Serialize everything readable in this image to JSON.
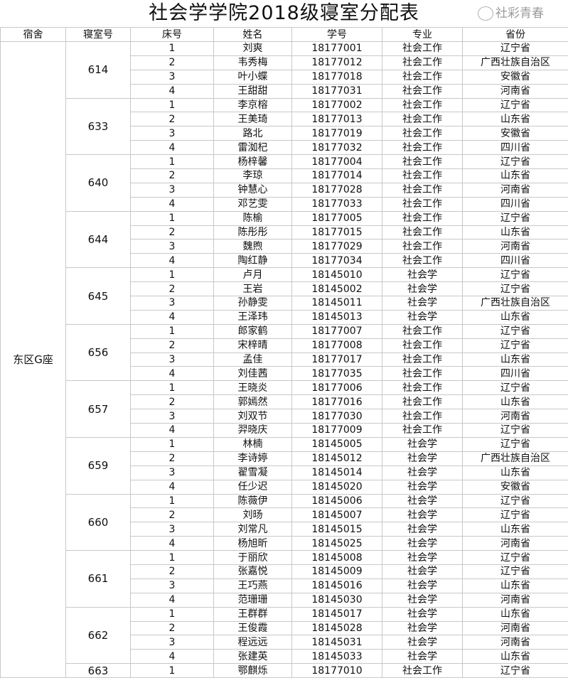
{
  "title": "社会学学院2018级寝室分配表",
  "headers": [
    "宿舍",
    "寝室号",
    "床号",
    "姓名",
    "学号",
    "专业",
    "省份"
  ],
  "dorm": "东区G座",
  "watermark": "社彩青春",
  "rooms": [
    {
      "room": "614",
      "beds": [
        [
          "1",
          "刘爽",
          "18177001",
          "社会工作",
          "辽宁省"
        ],
        [
          "2",
          "韦秀梅",
          "18177012",
          "社会工作",
          "广西壮族自治区"
        ],
        [
          "3",
          "叶小蝶",
          "18177018",
          "社会工作",
          "安徽省"
        ],
        [
          "4",
          "王甜甜",
          "18177031",
          "社会工作",
          "河南省"
        ]
      ]
    },
    {
      "room": "633",
      "beds": [
        [
          "1",
          "李京榕",
          "18177002",
          "社会工作",
          "辽宁省"
        ],
        [
          "2",
          "王美琦",
          "18177013",
          "社会工作",
          "山东省"
        ],
        [
          "3",
          "路北",
          "18177019",
          "社会工作",
          "安徽省"
        ],
        [
          "4",
          "雷洳杞",
          "18177032",
          "社会工作",
          "四川省"
        ]
      ]
    },
    {
      "room": "640",
      "beds": [
        [
          "1",
          "杨梓馨",
          "18177004",
          "社会工作",
          "辽宁省"
        ],
        [
          "2",
          "李琼",
          "18177014",
          "社会工作",
          "山东省"
        ],
        [
          "3",
          "钟慧心",
          "18177028",
          "社会工作",
          "河南省"
        ],
        [
          "4",
          "邓艺雯",
          "18177033",
          "社会工作",
          "四川省"
        ]
      ]
    },
    {
      "room": "644",
      "beds": [
        [
          "1",
          "陈榆",
          "18177005",
          "社会工作",
          "辽宁省"
        ],
        [
          "2",
          "陈彤彤",
          "18177015",
          "社会工作",
          "山东省"
        ],
        [
          "3",
          "魏煦",
          "18177029",
          "社会工作",
          "河南省"
        ],
        [
          "4",
          "陶红静",
          "18177034",
          "社会工作",
          "四川省"
        ]
      ]
    },
    {
      "room": "645",
      "beds": [
        [
          "1",
          "卢月",
          "18145010",
          "社会学",
          "辽宁省"
        ],
        [
          "2",
          "王岩",
          "18145002",
          "社会学",
          "辽宁省"
        ],
        [
          "3",
          "孙静雯",
          "18145011",
          "社会学",
          "广西壮族自治区"
        ],
        [
          "4",
          "王泽玮",
          "18145013",
          "社会学",
          "山东省"
        ]
      ]
    },
    {
      "room": "656",
      "beds": [
        [
          "1",
          "郎家鹤",
          "18177007",
          "社会工作",
          "辽宁省"
        ],
        [
          "2",
          "宋梓晴",
          "18177008",
          "社会工作",
          "辽宁省"
        ],
        [
          "3",
          "孟佳",
          "18177017",
          "社会工作",
          "山东省"
        ],
        [
          "4",
          "刘佳茜",
          "18177035",
          "社会工作",
          "四川省"
        ]
      ]
    },
    {
      "room": "657",
      "beds": [
        [
          "1",
          "王晓炎",
          "18177006",
          "社会工作",
          "辽宁省"
        ],
        [
          "2",
          "郭嫣然",
          "18177016",
          "社会工作",
          "山东省"
        ],
        [
          "3",
          "刘双节",
          "18177030",
          "社会工作",
          "河南省"
        ],
        [
          "4",
          "羿晓庆",
          "18177009",
          "社会工作",
          "辽宁省"
        ]
      ]
    },
    {
      "room": "659",
      "beds": [
        [
          "1",
          "林楠",
          "18145005",
          "社会学",
          "辽宁省"
        ],
        [
          "2",
          "李诗婷",
          "18145012",
          "社会学",
          "广西壮族自治区"
        ],
        [
          "3",
          "翟雪凝",
          "18145014",
          "社会学",
          "山东省"
        ],
        [
          "4",
          "任少迟",
          "18145020",
          "社会学",
          "安徽省"
        ]
      ]
    },
    {
      "room": "660",
      "beds": [
        [
          "1",
          "陈薇伊",
          "18145006",
          "社会学",
          "辽宁省"
        ],
        [
          "2",
          "刘旸",
          "18145007",
          "社会学",
          "辽宁省"
        ],
        [
          "3",
          "刘常凡",
          "18145015",
          "社会学",
          "山东省"
        ],
        [
          "4",
          "杨旭昕",
          "18145025",
          "社会学",
          "河南省"
        ]
      ]
    },
    {
      "room": "661",
      "beds": [
        [
          "1",
          "于丽欣",
          "18145008",
          "社会学",
          "辽宁省"
        ],
        [
          "2",
          "张嘉悦",
          "18145009",
          "社会学",
          "辽宁省"
        ],
        [
          "3",
          "王巧燕",
          "18145016",
          "社会学",
          "山东省"
        ],
        [
          "4",
          "范珊珊",
          "18145030",
          "社会学",
          "河南省"
        ]
      ]
    },
    {
      "room": "662",
      "beds": [
        [
          "1",
          "王群群",
          "18145017",
          "社会学",
          "山东省"
        ],
        [
          "2",
          "王俊霞",
          "18145028",
          "社会学",
          "河南省"
        ],
        [
          "3",
          "程远远",
          "18145031",
          "社会学",
          "河南省"
        ],
        [
          "4",
          "张建英",
          "18145033",
          "社会学",
          "山东省"
        ]
      ]
    },
    {
      "room": "663",
      "beds": [
        [
          "1",
          "鄂麒烁",
          "18177010",
          "社会工作",
          "辽宁省"
        ]
      ]
    }
  ]
}
